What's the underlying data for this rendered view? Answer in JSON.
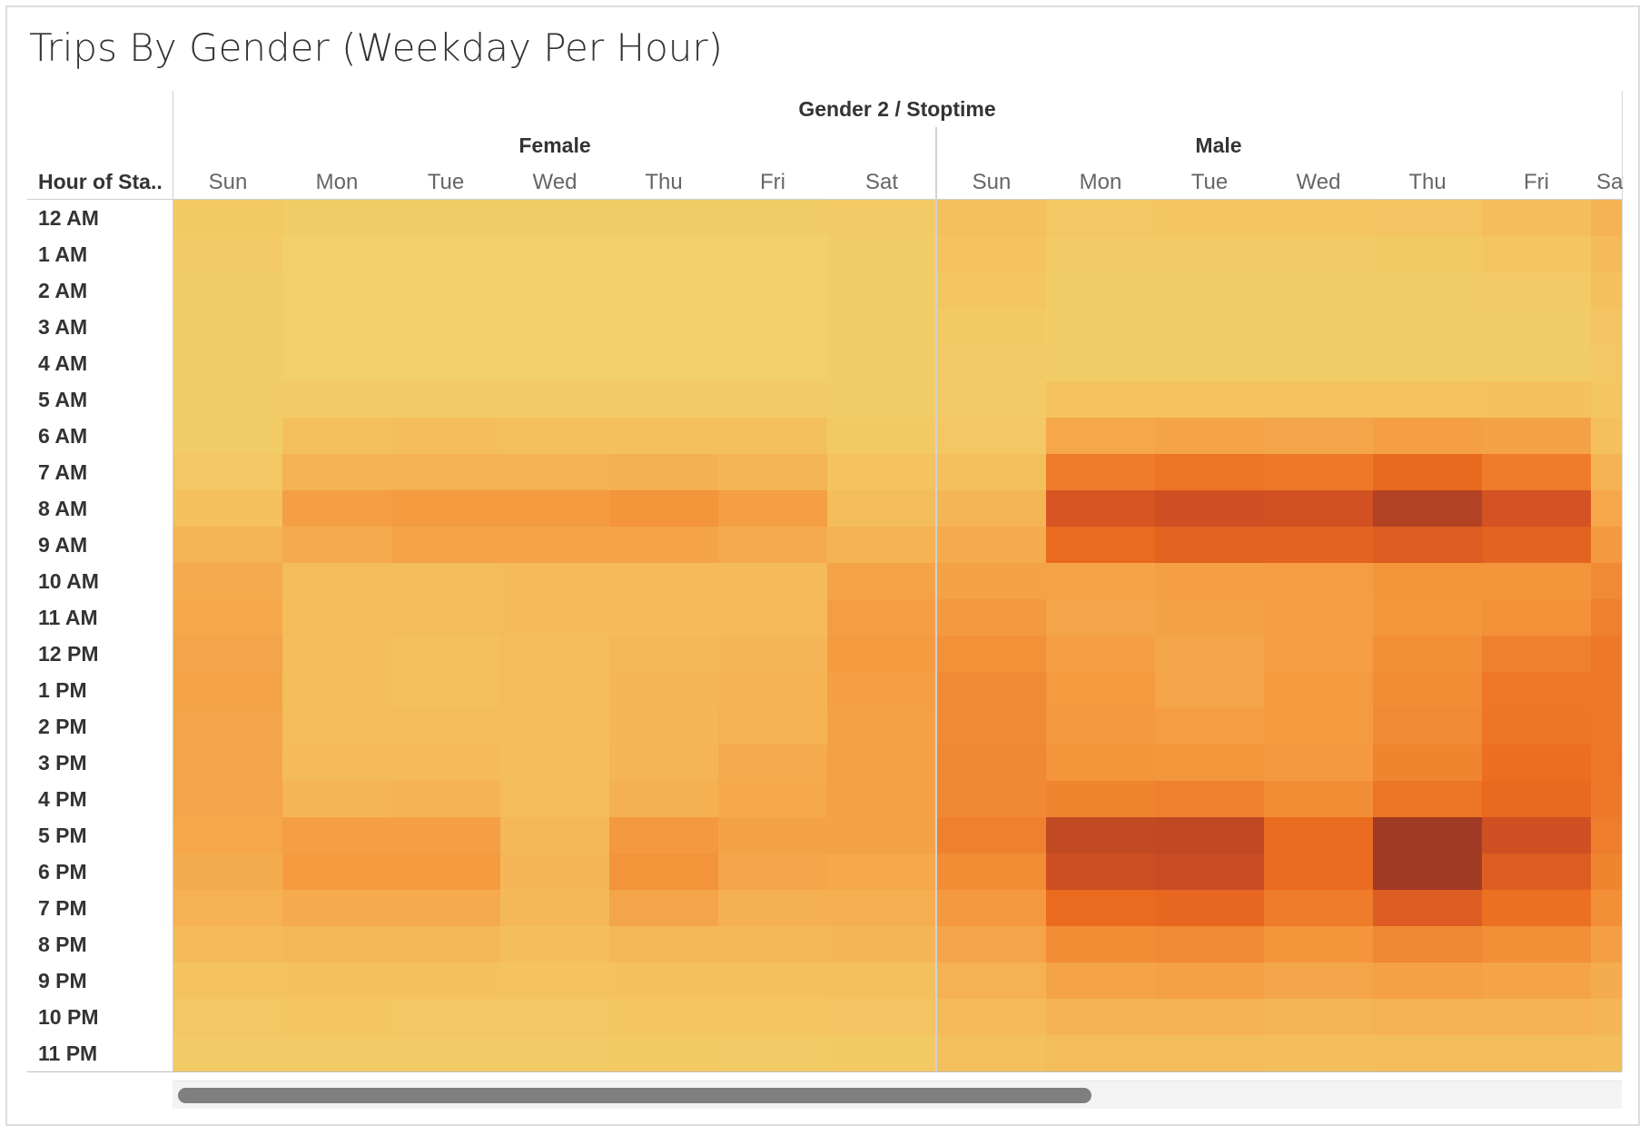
{
  "title": "Trips By Gender (Weekday Per Hour)",
  "column_header": "Gender 2 / Stoptime",
  "row_header": "Hour of Sta..",
  "groups": [
    "Female",
    "Male"
  ],
  "days": [
    "Sun",
    "Mon",
    "Tue",
    "Wed",
    "Thu",
    "Fri",
    "Sat"
  ],
  "hours": [
    "12 AM",
    "1 AM",
    "2 AM",
    "3 AM",
    "4 AM",
    "5 AM",
    "6 AM",
    "7 AM",
    "8 AM",
    "9 AM",
    "10 AM",
    "11 AM",
    "12 PM",
    "1 PM",
    "2 PM",
    "3 PM",
    "4 PM",
    "5 PM",
    "6 PM",
    "7 PM",
    "8 PM",
    "9 PM",
    "10 PM",
    "11 PM"
  ],
  "colors": {
    "low": "#F2CF68",
    "high": "#A13A24"
  },
  "chart_data": {
    "type": "heatmap",
    "title": "Trips By Gender (Weekday Per Hour)",
    "column_dimension": "Gender 2 / Stoptime",
    "row_dimension": "Hour of Sta..",
    "groups": [
      "Female",
      "Male"
    ],
    "columns": [
      "Sun",
      "Mon",
      "Tue",
      "Wed",
      "Thu",
      "Fri",
      "Sat"
    ],
    "rows": [
      "12 AM",
      "1 AM",
      "2 AM",
      "3 AM",
      "4 AM",
      "5 AM",
      "6 AM",
      "7 AM",
      "8 AM",
      "9 AM",
      "10 AM",
      "11 AM",
      "12 PM",
      "1 PM",
      "2 PM",
      "3 PM",
      "4 PM",
      "5 PM",
      "6 PM",
      "7 PM",
      "8 PM",
      "9 PM",
      "10 PM",
      "11 PM"
    ],
    "value_scale": "relative intensity 0-100 (color legend not shown)",
    "values": {
      "Female": [
        [
          4,
          1,
          1,
          1,
          1,
          1,
          3
        ],
        [
          3,
          0,
          0,
          0,
          0,
          0,
          2
        ],
        [
          2,
          0,
          0,
          0,
          0,
          0,
          1
        ],
        [
          1,
          0,
          0,
          0,
          0,
          0,
          1
        ],
        [
          1,
          0,
          0,
          0,
          0,
          0,
          1
        ],
        [
          1,
          3,
          3,
          3,
          3,
          3,
          2
        ],
        [
          2,
          10,
          11,
          10,
          10,
          10,
          4
        ],
        [
          5,
          18,
          19,
          19,
          20,
          17,
          8
        ],
        [
          9,
          30,
          32,
          32,
          36,
          30,
          12
        ],
        [
          17,
          23,
          27,
          27,
          27,
          23,
          18
        ],
        [
          23,
          12,
          12,
          13,
          14,
          13,
          27
        ],
        [
          24,
          12,
          12,
          13,
          13,
          13,
          31
        ],
        [
          26,
          11,
          10,
          12,
          15,
          16,
          32
        ],
        [
          27,
          11,
          10,
          12,
          16,
          18,
          30
        ],
        [
          26,
          12,
          12,
          12,
          16,
          19,
          29
        ],
        [
          26,
          13,
          14,
          11,
          17,
          23,
          29
        ],
        [
          26,
          17,
          18,
          12,
          20,
          24,
          29
        ],
        [
          25,
          30,
          30,
          15,
          33,
          28,
          28
        ],
        [
          22,
          32,
          32,
          16,
          37,
          26,
          24
        ],
        [
          19,
          23,
          23,
          15,
          26,
          20,
          21
        ],
        [
          14,
          15,
          15,
          11,
          15,
          15,
          16
        ],
        [
          8,
          9,
          9,
          8,
          9,
          9,
          10
        ],
        [
          5,
          6,
          5,
          5,
          6,
          6,
          7
        ],
        [
          3,
          3,
          3,
          3,
          4,
          3,
          4
        ]
      ],
      "Male": [
        [
          10,
          5,
          6,
          6,
          7,
          11,
          18
        ],
        [
          8,
          3,
          3,
          3,
          4,
          6,
          14
        ],
        [
          6,
          2,
          2,
          2,
          2,
          3,
          10
        ],
        [
          4,
          2,
          2,
          2,
          2,
          2,
          7
        ],
        [
          3,
          2,
          2,
          2,
          2,
          2,
          5
        ],
        [
          3,
          8,
          8,
          8,
          8,
          9,
          6
        ],
        [
          5,
          25,
          27,
          26,
          30,
          28,
          10
        ],
        [
          10,
          50,
          55,
          52,
          61,
          50,
          18
        ],
        [
          17,
          78,
          82,
          81,
          93,
          80,
          25
        ],
        [
          23,
          60,
          66,
          66,
          72,
          66,
          33
        ],
        [
          28,
          27,
          30,
          31,
          36,
          36,
          42
        ],
        [
          33,
          26,
          28,
          30,
          35,
          38,
          48
        ],
        [
          38,
          30,
          26,
          31,
          39,
          47,
          52
        ],
        [
          42,
          32,
          26,
          32,
          41,
          53,
          52
        ],
        [
          42,
          33,
          31,
          32,
          42,
          54,
          52
        ],
        [
          43,
          36,
          35,
          33,
          45,
          58,
          53
        ],
        [
          43,
          45,
          47,
          40,
          55,
          62,
          52
        ],
        [
          47,
          87,
          88,
          60,
          100,
          82,
          49
        ],
        [
          40,
          83,
          85,
          60,
          100,
          72,
          45
        ],
        [
          33,
          60,
          63,
          50,
          72,
          57,
          39
        ],
        [
          26,
          40,
          42,
          36,
          44,
          39,
          30
        ],
        [
          19,
          27,
          29,
          26,
          29,
          27,
          22
        ],
        [
          14,
          18,
          19,
          17,
          19,
          19,
          16
        ],
        [
          10,
          12,
          12,
          11,
          12,
          12,
          11
        ]
      ]
    }
  }
}
